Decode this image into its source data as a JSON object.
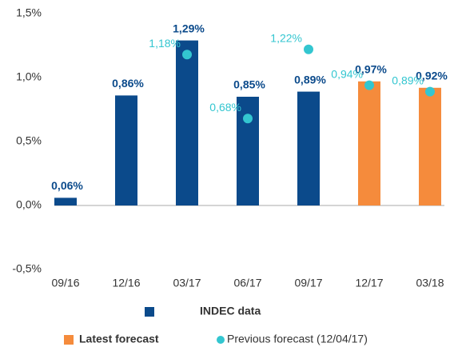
{
  "chart_data": {
    "type": "bar",
    "categories": [
      "09/16",
      "12/16",
      "03/17",
      "06/17",
      "09/17",
      "12/17",
      "03/18"
    ],
    "series": [
      {
        "name": "INDEC data",
        "type": "bar",
        "color": "#0b4a8b",
        "values": [
          0.06,
          0.86,
          1.29,
          0.85,
          0.89,
          null,
          null
        ],
        "value_labels": [
          "0,06%",
          "0,86%",
          "1,29%",
          "0,85%",
          "0,89%",
          null,
          null
        ]
      },
      {
        "name": "Latest forecast",
        "type": "bar",
        "color": "#f58b3c",
        "values": [
          null,
          null,
          null,
          null,
          null,
          0.97,
          0.92
        ],
        "value_labels": [
          null,
          null,
          null,
          null,
          null,
          "0,97%",
          "0,92%"
        ]
      },
      {
        "name": "Previous forecast (12/04/17)",
        "type": "scatter",
        "color": "#33c6d0",
        "values": [
          null,
          null,
          1.18,
          0.68,
          1.22,
          0.94,
          0.89
        ],
        "value_labels": [
          null,
          null,
          "1,18%",
          "0,68%",
          "1,22%",
          "0,94%",
          "0,89%"
        ]
      }
    ],
    "ylim": [
      -0.5,
      1.5
    ],
    "yticks": [
      {
        "value": -0.5,
        "label": "-0,5%"
      },
      {
        "value": 0,
        "label": "0,0%"
      },
      {
        "value": 0.5,
        "label": "0,5%"
      },
      {
        "value": 1,
        "label": "1,0%"
      },
      {
        "value": 1.5,
        "label": "1,5%"
      }
    ]
  }
}
